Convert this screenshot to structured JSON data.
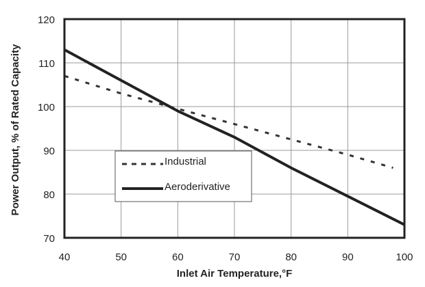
{
  "chart_data": {
    "type": "line",
    "title": "",
    "xlabel": "Inlet Air Temperature,°F",
    "ylabel": "Power Output, % of Rated Capacity",
    "xlim": [
      40,
      100
    ],
    "ylim": [
      70,
      120
    ],
    "xticks": [
      "40",
      "50",
      "60",
      "70",
      "80",
      "90",
      "100"
    ],
    "yticks": [
      "70",
      "80",
      "90",
      "100",
      "110",
      "120"
    ],
    "grid": true,
    "legend_position": "lower-left",
    "series": [
      {
        "name": "Industrial",
        "style": "dashed",
        "x": [
          40,
          50,
          60,
          70,
          80,
          90,
          98
        ],
        "y": [
          107,
          103,
          99.5,
          96,
          92.5,
          89,
          86
        ]
      },
      {
        "name": "Aeroderivative",
        "style": "solid",
        "x": [
          40,
          50,
          60,
          70,
          80,
          90,
          100
        ],
        "y": [
          113,
          106,
          99,
          93,
          86,
          79.5,
          73
        ]
      }
    ]
  }
}
